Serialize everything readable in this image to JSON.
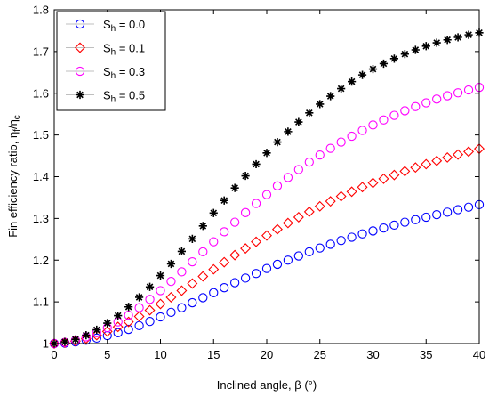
{
  "chart_data": {
    "type": "scatter",
    "title": "",
    "xlabel": "Inclined angle, β (°)",
    "ylabel": {
      "prefix": "Fin efficiency ratio, η",
      "sub1": "f",
      "mid": "/η",
      "sub2": "c"
    },
    "xlim": [
      0,
      40
    ],
    "ylim": [
      1.0,
      1.8
    ],
    "xticks": [
      0,
      5,
      10,
      15,
      20,
      25,
      30,
      35,
      40
    ],
    "yticks": [
      1,
      1.1,
      1.2,
      1.3,
      1.4,
      1.5,
      1.6,
      1.7,
      1.8
    ],
    "ytick_labels": [
      "1",
      "1.1",
      "1.2",
      "1.3",
      "1.4",
      "1.5",
      "1.6",
      "1.7",
      "1.8"
    ],
    "grid": false,
    "legend_position": "top-left",
    "x": [
      0,
      1,
      2,
      3,
      4,
      5,
      6,
      7,
      8,
      9,
      10,
      11,
      12,
      13,
      14,
      15,
      16,
      17,
      18,
      19,
      20,
      21,
      22,
      23,
      24,
      25,
      26,
      27,
      28,
      29,
      30,
      31,
      32,
      33,
      34,
      35,
      36,
      37,
      38,
      39,
      40
    ],
    "series": [
      {
        "name": {
          "base": "S",
          "sub": "h",
          "rest": " = 0.0"
        },
        "marker": "circle",
        "color": "#0000ff",
        "values": [
          1.0,
          1.001,
          1.004,
          1.008,
          1.013,
          1.019,
          1.026,
          1.034,
          1.043,
          1.053,
          1.064,
          1.075,
          1.086,
          1.098,
          1.11,
          1.122,
          1.134,
          1.146,
          1.157,
          1.168,
          1.18,
          1.19,
          1.2,
          1.21,
          1.22,
          1.229,
          1.238,
          1.247,
          1.255,
          1.263,
          1.27,
          1.277,
          1.284,
          1.291,
          1.297,
          1.303,
          1.309,
          1.315,
          1.321,
          1.327,
          1.333
        ]
      },
      {
        "name": {
          "base": "S",
          "sub": "h",
          "rest": " = 0.1"
        },
        "marker": "diamond",
        "color": "#ff0000",
        "values": [
          1.0,
          1.002,
          1.006,
          1.012,
          1.02,
          1.029,
          1.04,
          1.052,
          1.065,
          1.08,
          1.095,
          1.111,
          1.127,
          1.144,
          1.161,
          1.178,
          1.195,
          1.212,
          1.228,
          1.244,
          1.259,
          1.274,
          1.289,
          1.303,
          1.316,
          1.329,
          1.341,
          1.353,
          1.364,
          1.375,
          1.385,
          1.395,
          1.404,
          1.413,
          1.422,
          1.43,
          1.438,
          1.446,
          1.453,
          1.46,
          1.467
        ]
      },
      {
        "name": {
          "base": "S",
          "sub": "h",
          "rest": " = 0.3"
        },
        "marker": "circle",
        "color": "#ff00ff",
        "values": [
          1.0,
          1.003,
          1.008,
          1.016,
          1.026,
          1.038,
          1.052,
          1.068,
          1.086,
          1.106,
          1.127,
          1.149,
          1.172,
          1.196,
          1.22,
          1.244,
          1.268,
          1.291,
          1.314,
          1.336,
          1.357,
          1.378,
          1.398,
          1.417,
          1.435,
          1.452,
          1.468,
          1.483,
          1.497,
          1.511,
          1.524,
          1.536,
          1.547,
          1.558,
          1.568,
          1.577,
          1.586,
          1.594,
          1.601,
          1.608,
          1.614
        ]
      },
      {
        "name": {
          "base": "S",
          "sub": "h",
          "rest": " = 0.5"
        },
        "marker": "star",
        "color": "#000000",
        "values": [
          1.0,
          1.004,
          1.01,
          1.02,
          1.033,
          1.049,
          1.067,
          1.088,
          1.111,
          1.136,
          1.163,
          1.191,
          1.221,
          1.251,
          1.282,
          1.313,
          1.343,
          1.373,
          1.402,
          1.43,
          1.457,
          1.483,
          1.508,
          1.531,
          1.553,
          1.574,
          1.593,
          1.611,
          1.628,
          1.644,
          1.658,
          1.671,
          1.683,
          1.694,
          1.704,
          1.713,
          1.721,
          1.728,
          1.734,
          1.74,
          1.745
        ]
      }
    ]
  }
}
